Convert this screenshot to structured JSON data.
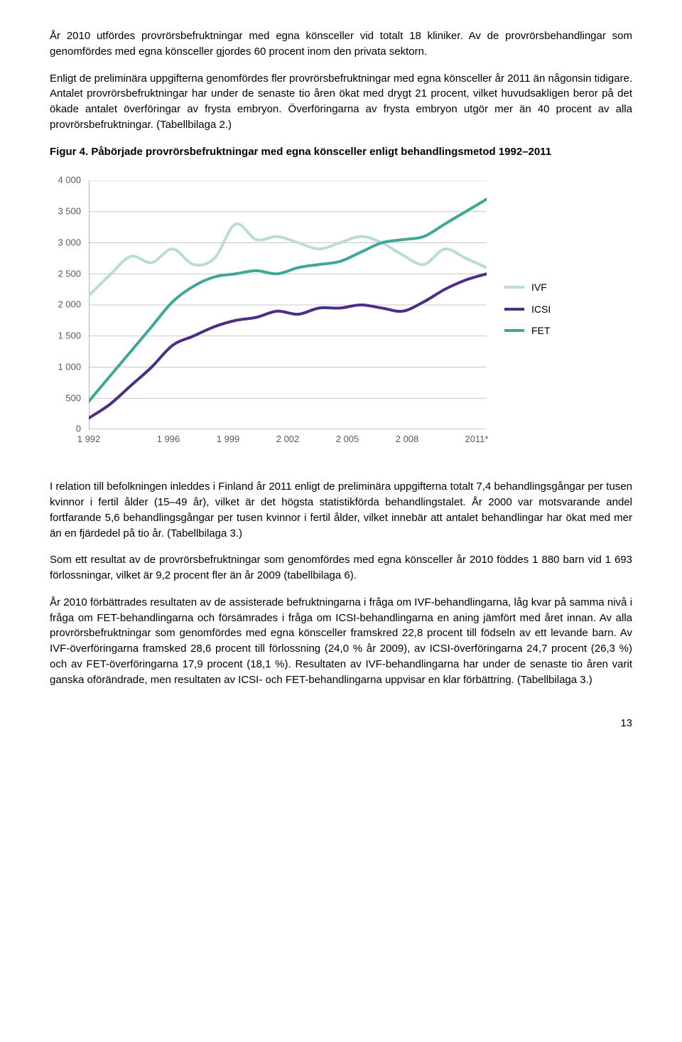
{
  "paragraphs": {
    "p1": "År 2010 utfördes provrörsbefruktningar med egna könsceller vid totalt 18 kliniker. Av de provrörsbehandlingar som genomfördes med egna könsceller gjordes 60 procent inom den privata sektorn.",
    "p2": "Enligt de preliminära uppgifterna genomfördes fler provrörsbefruktningar med egna könsceller år 2011 än någonsin tidigare. Antalet provrörsbefruktningar har under de senaste tio åren ökat med drygt 21 procent, vilket huvudsakligen beror på det ökade antalet överföringar av frysta embryon. Överföringarna av frysta embryon utgör mer än 40 procent av alla provrörsbefruktningar. (Tabellbilaga 2.)",
    "p3": "I relation till befolkningen inleddes i Finland år 2011 enligt de preliminära uppgifterna totalt 7,4 behandlingsgångar per tusen kvinnor i fertil ålder (15–49 år), vilket är det högsta statistikförda behandlingstalet. År 2000 var motsvarande andel fortfarande 5,6 behandlingsgångar per tusen kvinnor i fertil ålder, vilket innebär att antalet behandlingar har ökat med mer än en fjärdedel på tio år. (Tabellbilaga 3.)",
    "p4": "Som ett resultat av de provrörsbefruktningar som genomfördes med egna könsceller år 2010 föddes 1 880 barn vid 1 693 förlossningar, vilket är 9,2 procent fler än år 2009 (tabellbilaga 6).",
    "p5": "År 2010 förbättrades resultaten av de assisterade befruktningarna i fråga om IVF-behandlingarna, låg kvar på samma nivå i fråga om FET-behandlingarna och försämrades i fråga om ICSI-behandlingarna en aning jämfört med året innan. Av alla provrörsbefruktningar som genomfördes med egna könsceller framskred 22,8 procent till födseln av ett levande barn. Av IVF-överföringarna framsked 28,6 procent till förlossning (24,0 % år 2009), av ICSI-överföringarna 24,7 procent (26,3 %) och av FET-överföringarna 17,9 procent (18,1 %). Resultaten av IVF-behandlingarna har under de senaste tio åren varit ganska oförändrade, men resultaten av ICSI- och FET-behandlingarna uppvisar en klar förbättring. (Tabellbilaga 3.)"
  },
  "figure": {
    "title": "Figur 4. Påbörjade provrörsbefruktningar med egna könsceller enligt behandlingsmetod 1992–2011",
    "type": "line",
    "x_categories": [
      "1 992",
      "1 996",
      "1 999",
      "2 002",
      "2 005",
      "2 008",
      "2011*"
    ],
    "x_tick_positions": [
      0,
      0.2,
      0.35,
      0.5,
      0.65,
      0.8,
      0.975
    ],
    "y_ticks": [
      "0",
      "500",
      "1 000",
      "1 500",
      "2 000",
      "2 500",
      "3 000",
      "3 500",
      "4 000"
    ],
    "ylim": [
      0,
      4000
    ],
    "background_color": "#ffffff",
    "grid_color": "#b7b7b7",
    "axis_color": "#808080",
    "series": [
      {
        "name": "IVF",
        "color": "#b9dcd8",
        "line_width": 4,
        "values": [
          2150,
          2480,
          2780,
          2680,
          2900,
          2650,
          2750,
          3300,
          3050,
          3100,
          3000,
          2900,
          3000,
          3100,
          3000,
          2800,
          2650,
          2900,
          2750,
          2600
        ]
      },
      {
        "name": "ICSI",
        "color": "#4c2e83",
        "line_width": 4,
        "values": [
          180,
          400,
          700,
          1000,
          1350,
          1500,
          1650,
          1750,
          1800,
          1900,
          1850,
          1950,
          1950,
          2000,
          1950,
          1900,
          2050,
          2250,
          2400,
          2500
        ]
      },
      {
        "name": "FET",
        "color": "#3fa796",
        "line_width": 4,
        "values": [
          450,
          850,
          1250,
          1650,
          2050,
          2300,
          2450,
          2500,
          2550,
          2500,
          2600,
          2650,
          2700,
          2850,
          3000,
          3050,
          3100,
          3300,
          3500,
          3700
        ]
      }
    ],
    "legend_labels": {
      "ivf": "IVF",
      "icsi": "ICSI",
      "fet": "FET"
    },
    "label_fontsize": 13
  },
  "page_number": "13"
}
